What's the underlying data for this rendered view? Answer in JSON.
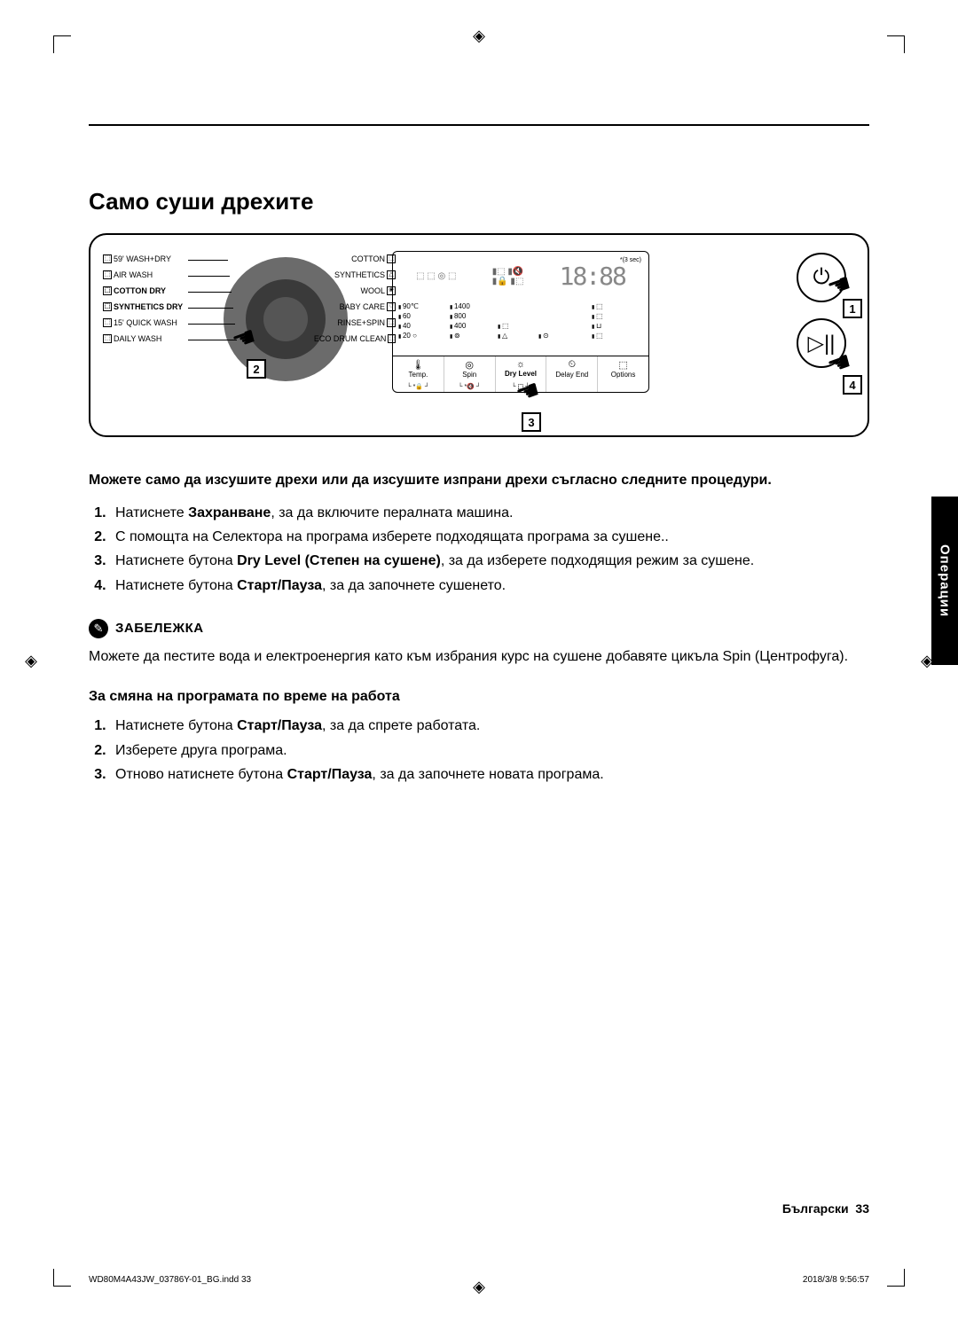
{
  "page": {
    "section_title": "Само суши дрехите",
    "side_tab": "Операции",
    "footer_language": "Български",
    "footer_page": "33",
    "slug_left": "WD80M4A43JW_03786Y-01_BG.indd   33",
    "slug_right": "2018/3/8   9:56:57"
  },
  "panel": {
    "programs_left": [
      {
        "icon": "⬚",
        "label": "59' WASH+DRY"
      },
      {
        "icon": "⬚",
        "label": "AIR WASH"
      },
      {
        "icon": "⬚",
        "label": "COTTON DRY",
        "bold": true
      },
      {
        "icon": "⬚",
        "label": "SYNTHETICS DRY",
        "bold": true
      },
      {
        "icon": "⬚",
        "label": "15' QUICK WASH"
      },
      {
        "icon": "⬚",
        "label": "DAILY WASH"
      }
    ],
    "programs_right": [
      {
        "label": "COTTON",
        "icon": "⬚"
      },
      {
        "label": "SYNTHETICS",
        "icon": "△"
      },
      {
        "label": "WOOL",
        "icon": "❀"
      },
      {
        "label": "BABY CARE",
        "icon": "♡"
      },
      {
        "label": "RINSE+SPIN",
        "icon": "⬚"
      },
      {
        "label": "ECO DRUM CLEAN",
        "icon": "⬚"
      }
    ],
    "display": {
      "threesec": "*(3 sec)",
      "time": "18:88",
      "temp_col": [
        "90℃",
        "60",
        "40",
        "20 ○"
      ],
      "spin_col": [
        "1400",
        "800",
        "400",
        "⊚"
      ],
      "icon_col1": [
        "",
        "",
        "⬚",
        "△"
      ],
      "icon_col2": [
        "",
        "",
        "",
        "⊙"
      ],
      "icon_col3": [
        "⬚",
        "⬚",
        "⊔",
        "⬚"
      ],
      "buttons": [
        {
          "icon": "🌡",
          "label": "Temp."
        },
        {
          "icon": "◎",
          "label": "Spin"
        },
        {
          "icon": "☼",
          "label": "Dry Level",
          "highlight": true
        },
        {
          "icon": "⏲",
          "label": "Delay End"
        },
        {
          "icon": "⬚",
          "label": "Options"
        }
      ],
      "sub_labels": [
        "└ *🔒 ┘",
        "└ *🔇 ┘",
        "└ ⬚ ┘"
      ]
    },
    "side_buttons": {
      "power": "⏻",
      "play": "▷||"
    },
    "callouts": {
      "c1": "1",
      "c2": "2",
      "c3": "3",
      "c4": "4"
    }
  },
  "text": {
    "intro": "Можете само да изсушите дрехи или да изсушите изпрани дрехи съгласно следните процедури.",
    "steps": [
      {
        "pre": "Натиснете ",
        "b": "Захранване",
        "post": ", за да включите пералната машина."
      },
      {
        "pre": "С помощта на Селектора на програма изберете подходящата програма за сушене..",
        "b": "",
        "post": ""
      },
      {
        "pre": "Натиснете бутона ",
        "b": "Dry Level (Степен на сушене)",
        "post": ", за да изберете подходящия режим за сушене."
      },
      {
        "pre": "Натиснете бутона ",
        "b": "Старт/Пауза",
        "post": ", за да започнете сушенето."
      }
    ],
    "note_label": "ЗАБЕЛЕЖКА",
    "note_body": "Можете да пестите вода и електроенергия като към избрания курс на сушене добавяте цикъла Spin (Центрофуга).",
    "sub_heading": "За смяна на програмата по време на работа",
    "steps2": [
      {
        "pre": "Натиснете бутона ",
        "b": "Старт/Пауза",
        "post": ", за да спрете работата."
      },
      {
        "pre": "Изберете друга програма.",
        "b": "",
        "post": ""
      },
      {
        "pre": "Отново натиснете бутона ",
        "b": "Старт/Пауза",
        "post": ", за да започнете новата програма."
      }
    ]
  }
}
